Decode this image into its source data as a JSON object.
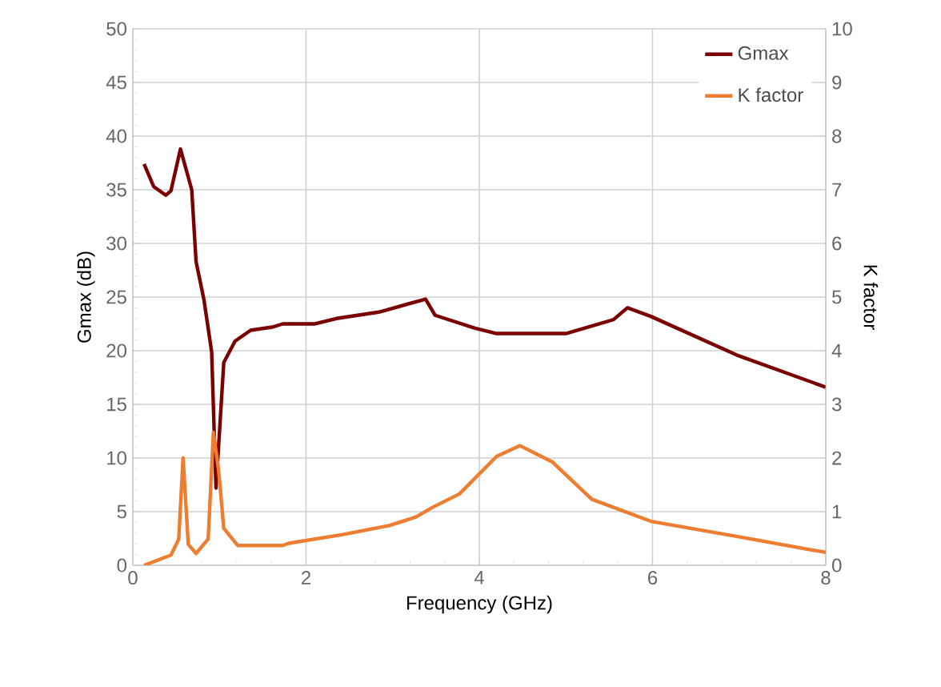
{
  "chart_data": {
    "type": "line",
    "xlabel": "Frequency (GHz)",
    "ylabel": "Gmax (dB)",
    "y2label": "K factor",
    "xlim": [
      0,
      8
    ],
    "xticks": [
      0,
      2,
      4,
      6,
      8
    ],
    "ylim": [
      0,
      50
    ],
    "yticks": [
      0,
      5,
      10,
      15,
      20,
      25,
      30,
      35,
      40,
      45,
      50
    ],
    "y2lim": [
      0,
      10
    ],
    "y2ticks": [
      0,
      1,
      2,
      3,
      4,
      5,
      6,
      7,
      8,
      9,
      10
    ],
    "grid": true,
    "legend": "top right",
    "marker": "none",
    "line_style": "solid",
    "series": [
      {
        "name": "Gmax",
        "color": "#7b0000",
        "x": [
          0.13,
          0.24,
          0.38,
          0.44,
          0.55,
          0.68,
          0.73,
          0.82,
          0.91,
          0.96,
          1.05,
          1.18,
          1.36,
          1.61,
          1.73,
          2.1,
          2.35,
          2.84,
          3.33,
          3.38,
          3.49,
          3.95,
          4.2,
          5.0,
          5.55,
          5.71,
          5.98,
          6.97,
          8.0
        ],
        "values": [
          37.4,
          35.3,
          34.5,
          34.9,
          38.8,
          35.0,
          28.3,
          24.8,
          19.9,
          7.2,
          18.9,
          20.9,
          21.9,
          22.2,
          22.5,
          22.5,
          23.0,
          23.6,
          24.7,
          24.8,
          23.3,
          22.1,
          21.6,
          21.6,
          22.9,
          24.0,
          23.2,
          19.6,
          16.6
        ]
      },
      {
        "name": "K factor",
        "color": "#ed7d31",
        "axis": "y2",
        "x": [
          0.13,
          0.44,
          0.53,
          0.58,
          0.64,
          0.73,
          0.87,
          0.93,
          0.99,
          1.05,
          1.21,
          1.73,
          1.8,
          2.41,
          2.96,
          3.27,
          3.46,
          3.77,
          4.2,
          4.47,
          4.84,
          5.3,
          5.98,
          6.97,
          8.0
        ],
        "values": [
          0.0,
          0.19,
          0.49,
          2.0,
          0.39,
          0.22,
          0.49,
          2.48,
          1.78,
          0.69,
          0.37,
          0.37,
          0.41,
          0.57,
          0.74,
          0.9,
          1.08,
          1.33,
          2.03,
          2.23,
          1.93,
          1.23,
          0.82,
          0.54,
          0.24
        ]
      }
    ]
  }
}
